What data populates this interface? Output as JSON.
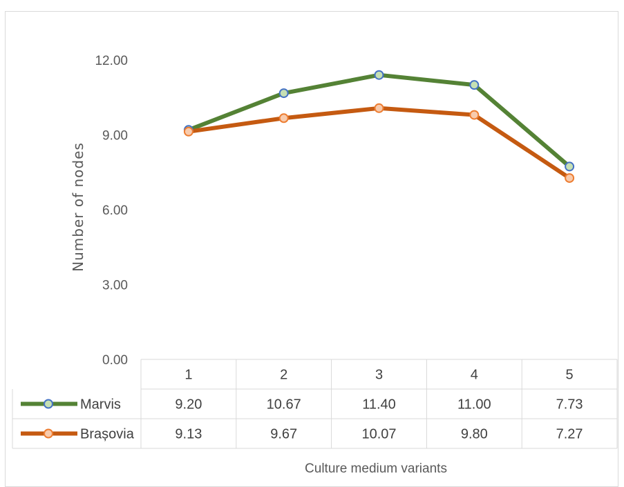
{
  "chart_data": {
    "type": "line",
    "xlabel": "Culture medium variants",
    "ylabel": "Number of nodes",
    "ylim": [
      0,
      12
    ],
    "yticks": [
      "0.00",
      "3.00",
      "6.00",
      "9.00",
      "12.00"
    ],
    "categories": [
      "1",
      "2",
      "3",
      "4",
      "5"
    ],
    "grid": false,
    "legend": "data table",
    "series": [
      {
        "name": "Marvis",
        "values": [
          9.2,
          10.67,
          11.4,
          11.0,
          7.73
        ],
        "labels": [
          "9.20",
          "10.67",
          "11.40",
          "11.00",
          "7.73"
        ],
        "color": "#548235",
        "marker_fill": "#c6e0b4",
        "marker_stroke": "#4472c4"
      },
      {
        "name": "Brașovia",
        "values": [
          9.13,
          9.67,
          10.07,
          9.8,
          7.27
        ],
        "labels": [
          "9.13",
          "9.67",
          "10.07",
          "9.80",
          "7.27"
        ],
        "color": "#c55a11",
        "marker_fill": "#f8cbad",
        "marker_stroke": "#ed7d31"
      }
    ]
  }
}
